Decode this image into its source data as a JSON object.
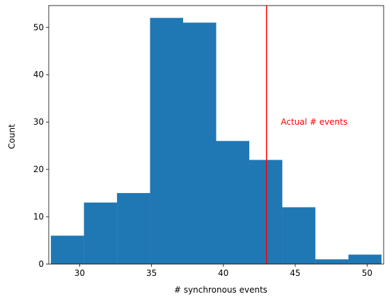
{
  "chart_data": {
    "type": "bar",
    "subtype": "histogram",
    "xlabel": "# synchronous events",
    "ylabel": "Count",
    "xlim": [
      27.85,
      51.15
    ],
    "ylim": [
      0,
      54.6
    ],
    "bin_edges": [
      28.0,
      30.3,
      32.6,
      34.9,
      37.2,
      39.5,
      41.8,
      44.1,
      46.4,
      48.7,
      51.0
    ],
    "counts": [
      6,
      13,
      15,
      52,
      51,
      26,
      22,
      12,
      1,
      2
    ],
    "bar_color": "#1f77b4",
    "x_ticks": [
      30,
      35,
      40,
      45,
      50
    ],
    "y_ticks": [
      0,
      10,
      20,
      30,
      40,
      50
    ],
    "vline": {
      "x": 43,
      "color": "#ff0000"
    },
    "annotation": {
      "text": "Actual # events",
      "x": 44,
      "y": 30,
      "color": "#ff0000"
    },
    "grid": false,
    "legend": "none"
  }
}
